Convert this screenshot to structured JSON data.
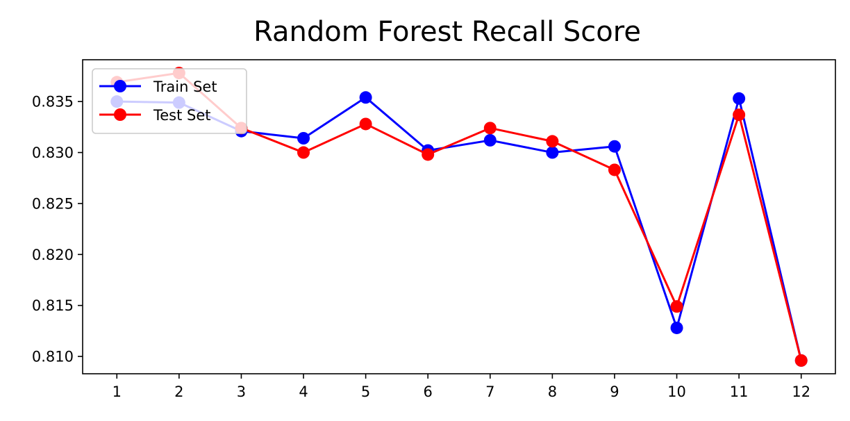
{
  "chart_data": {
    "type": "line",
    "title": "Random Forest Recall Score",
    "xlabel": "",
    "ylabel": "",
    "x": [
      1,
      2,
      3,
      4,
      5,
      6,
      7,
      8,
      9,
      10,
      11,
      12
    ],
    "xticks": [
      "1",
      "2",
      "3",
      "4",
      "5",
      "6",
      "7",
      "8",
      "9",
      "10",
      "11",
      "12"
    ],
    "yticks": [
      "0.810",
      "0.815",
      "0.820",
      "0.825",
      "0.830",
      "0.835"
    ],
    "ytick_values": [
      0.81,
      0.815,
      0.82,
      0.825,
      0.83,
      0.835
    ],
    "xlim": [
      0.45,
      12.55
    ],
    "ylim": [
      0.8083,
      0.8391
    ],
    "grid": false,
    "legend_position": "upper-left",
    "series": [
      {
        "name": "Train Set",
        "color": "#0000ff",
        "marker": "circle",
        "values": [
          0.835,
          0.8349,
          0.8321,
          0.8314,
          0.8354,
          0.8302,
          0.8312,
          0.83,
          0.8306,
          0.8128,
          0.8353,
          0.8096
        ]
      },
      {
        "name": "Test Set",
        "color": "#ff0000",
        "marker": "circle",
        "values": [
          0.8369,
          0.8378,
          0.8324,
          0.83,
          0.8328,
          0.8298,
          0.8324,
          0.8311,
          0.8283,
          0.8149,
          0.8337,
          0.8096
        ]
      }
    ]
  }
}
